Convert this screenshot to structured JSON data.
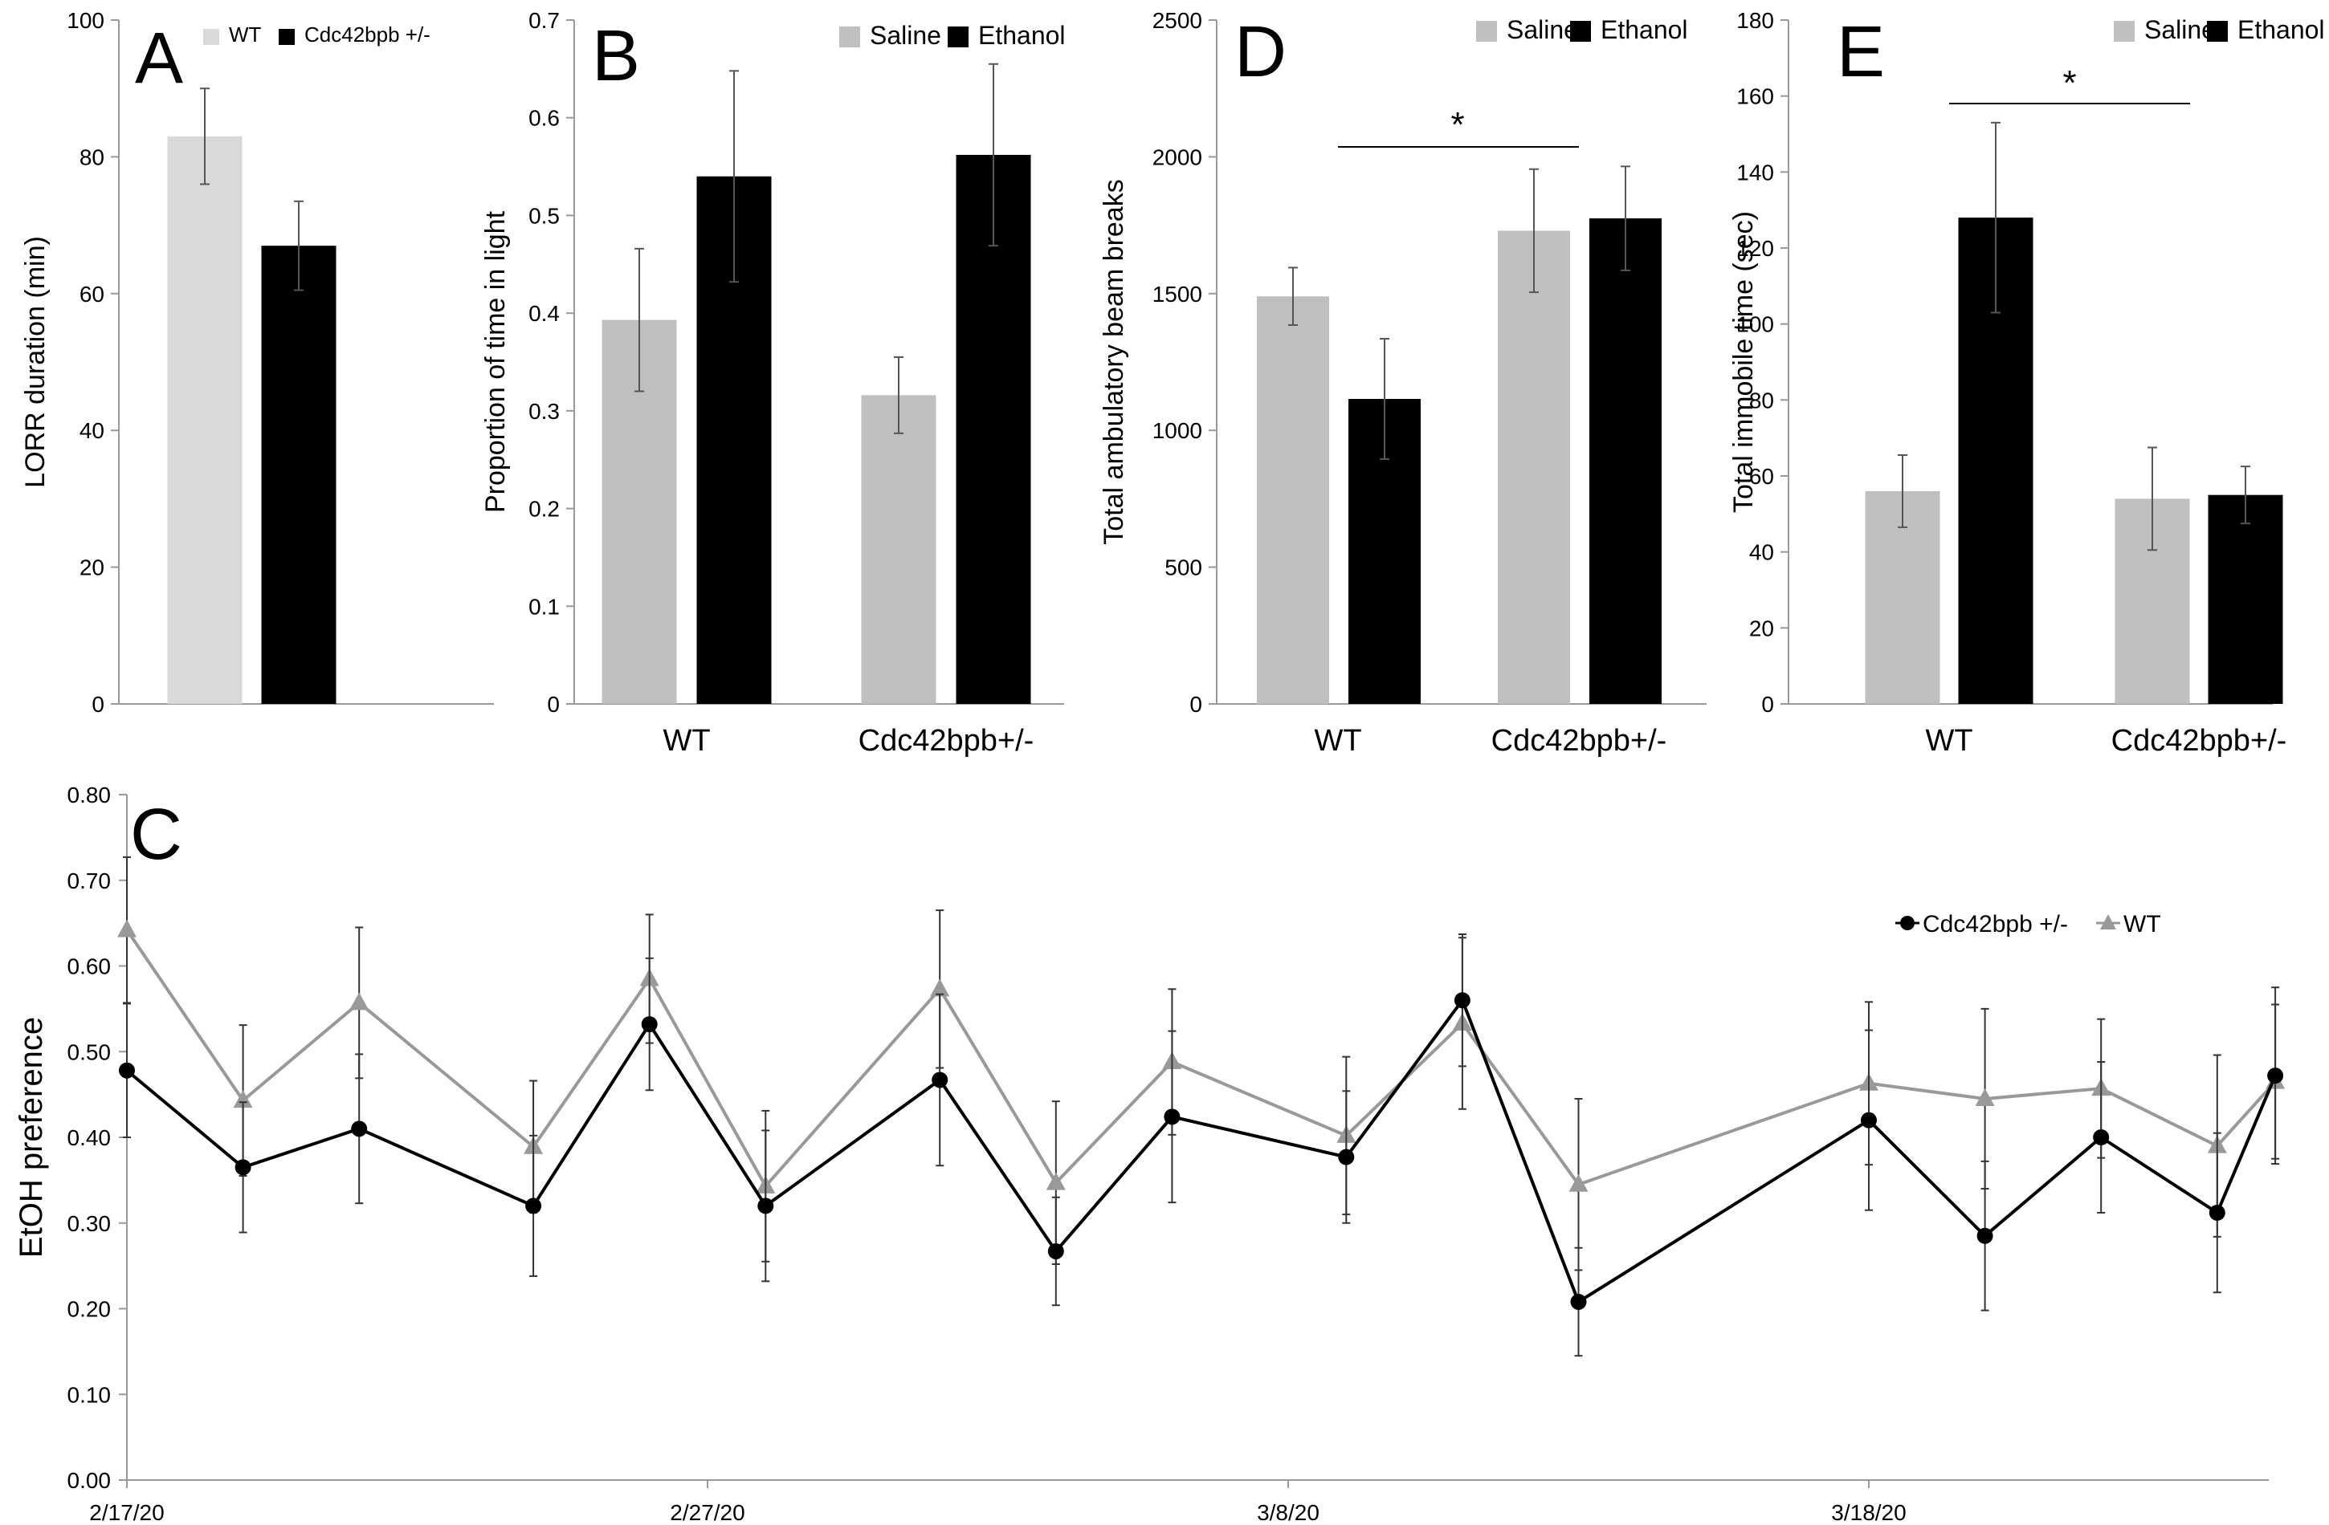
{
  "chart_data": [
    {
      "panel": "A",
      "type": "bar",
      "letter": "A",
      "ylabel": "LORR duration (min)",
      "ylim": [
        0,
        100
      ],
      "yticks": [
        "0",
        "20",
        "40",
        "60",
        "80",
        "100"
      ],
      "legend": [
        "WT",
        "Cdc42bpb +/-"
      ],
      "series": [
        {
          "name": "WT",
          "color": "#d9d9d9",
          "values": [
            83
          ],
          "errors": [
            7
          ]
        },
        {
          "name": "Cdc42bpb +/-",
          "color": "#000000",
          "values": [
            67
          ],
          "errors": [
            6.5
          ]
        }
      ]
    },
    {
      "panel": "B",
      "type": "bar",
      "letter": "B",
      "ylabel": "Proportion of time in light",
      "ylim": [
        0,
        0.7
      ],
      "yticks": [
        "0",
        "0.1",
        "0.2",
        "0.3",
        "0.4",
        "0.5",
        "0.6",
        "0.7"
      ],
      "categories": [
        "WT",
        "Cdc42bpb+/-"
      ],
      "legend": [
        "Saline",
        "Ethanol"
      ],
      "series": [
        {
          "name": "Saline",
          "color": "#bfbfbf",
          "values": [
            0.393,
            0.316
          ],
          "errors": [
            0.073,
            0.039
          ]
        },
        {
          "name": "Ethanol",
          "color": "#000000",
          "values": [
            0.54,
            0.562
          ],
          "errors": [
            0.108,
            0.093
          ]
        }
      ]
    },
    {
      "panel": "D",
      "type": "bar",
      "letter": "D",
      "ylabel": "Total ambulatory beam breaks",
      "ylim": [
        0,
        2500
      ],
      "yticks": [
        "0",
        "500",
        "1000",
        "1500",
        "2000",
        "2500"
      ],
      "categories": [
        "WT",
        "Cdc42bpb+/-"
      ],
      "legend": [
        "Saline",
        "Ethanol"
      ],
      "significance": "*",
      "series": [
        {
          "name": "Saline",
          "color": "#bfbfbf",
          "values": [
            1490,
            1730
          ],
          "errors": [
            105,
            225
          ]
        },
        {
          "name": "Ethanol",
          "color": "#000000",
          "values": [
            1115,
            1775
          ],
          "errors": [
            220,
            190
          ]
        }
      ]
    },
    {
      "panel": "E",
      "type": "bar",
      "letter": "E",
      "ylabel": "Total immobile time (sec)",
      "ylim": [
        0,
        180
      ],
      "yticks": [
        "0",
        "20",
        "40",
        "60",
        "80",
        "100",
        "120",
        "140",
        "160",
        "180"
      ],
      "categories": [
        "WT",
        "Cdc42bpb+/-"
      ],
      "legend": [
        "Saline",
        "Ethanol"
      ],
      "significance": "*",
      "series": [
        {
          "name": "Saline",
          "color": "#bfbfbf",
          "values": [
            56,
            54
          ],
          "errors": [
            9.5,
            13.5
          ]
        },
        {
          "name": "Ethanol",
          "color": "#000000",
          "values": [
            128,
            55
          ],
          "errors": [
            25,
            7.5
          ]
        }
      ]
    },
    {
      "panel": "C",
      "type": "line",
      "letter": "C",
      "ylabel": "EtOH preference",
      "ylim": [
        0,
        0.8
      ],
      "yticks": [
        "0.00",
        "0.10",
        "0.20",
        "0.30",
        "0.40",
        "0.50",
        "0.60",
        "0.70",
        "0.80"
      ],
      "xtick_labels": [
        "2/17/20",
        "2/27/20",
        "3/8/20",
        "3/18/20"
      ],
      "xtick_positions": [
        0,
        10,
        20,
        30
      ],
      "x": [
        0,
        2,
        4,
        7,
        9,
        11,
        14,
        16,
        18,
        21,
        23,
        25,
        30,
        32,
        34,
        36,
        37
      ],
      "series": [
        {
          "name": "Cdc42bpb +/-",
          "color": "#000000",
          "marker": "circle",
          "values": [
            0.478,
            0.365,
            0.41,
            0.32,
            0.532,
            0.32,
            0.467,
            0.267,
            0.424,
            0.377,
            0.56,
            0.208,
            0.42,
            0.285,
            0.4,
            0.312,
            0.472
          ],
          "errors": [
            0.078,
            0.076,
            0.087,
            0.082,
            0.077,
            0.088,
            0.1,
            0.063,
            0.1,
            0.077,
            0.077,
            0.063,
            0.105,
            0.087,
            0.088,
            0.093,
            0.103
          ]
        },
        {
          "name": "WT",
          "color": "#999999",
          "marker": "triangle",
          "values": [
            0.642,
            0.443,
            0.557,
            0.389,
            0.585,
            0.343,
            0.573,
            0.347,
            0.488,
            0.402,
            0.533,
            0.345,
            0.463,
            0.445,
            0.457,
            0.39,
            0.465
          ],
          "errors": [
            0.085,
            0.088,
            0.088,
            0.077,
            0.075,
            0.088,
            0.092,
            0.095,
            0.085,
            0.092,
            0.1,
            0.1,
            0.095,
            0.105,
            0.081,
            0.106,
            0.09
          ]
        }
      ]
    }
  ]
}
